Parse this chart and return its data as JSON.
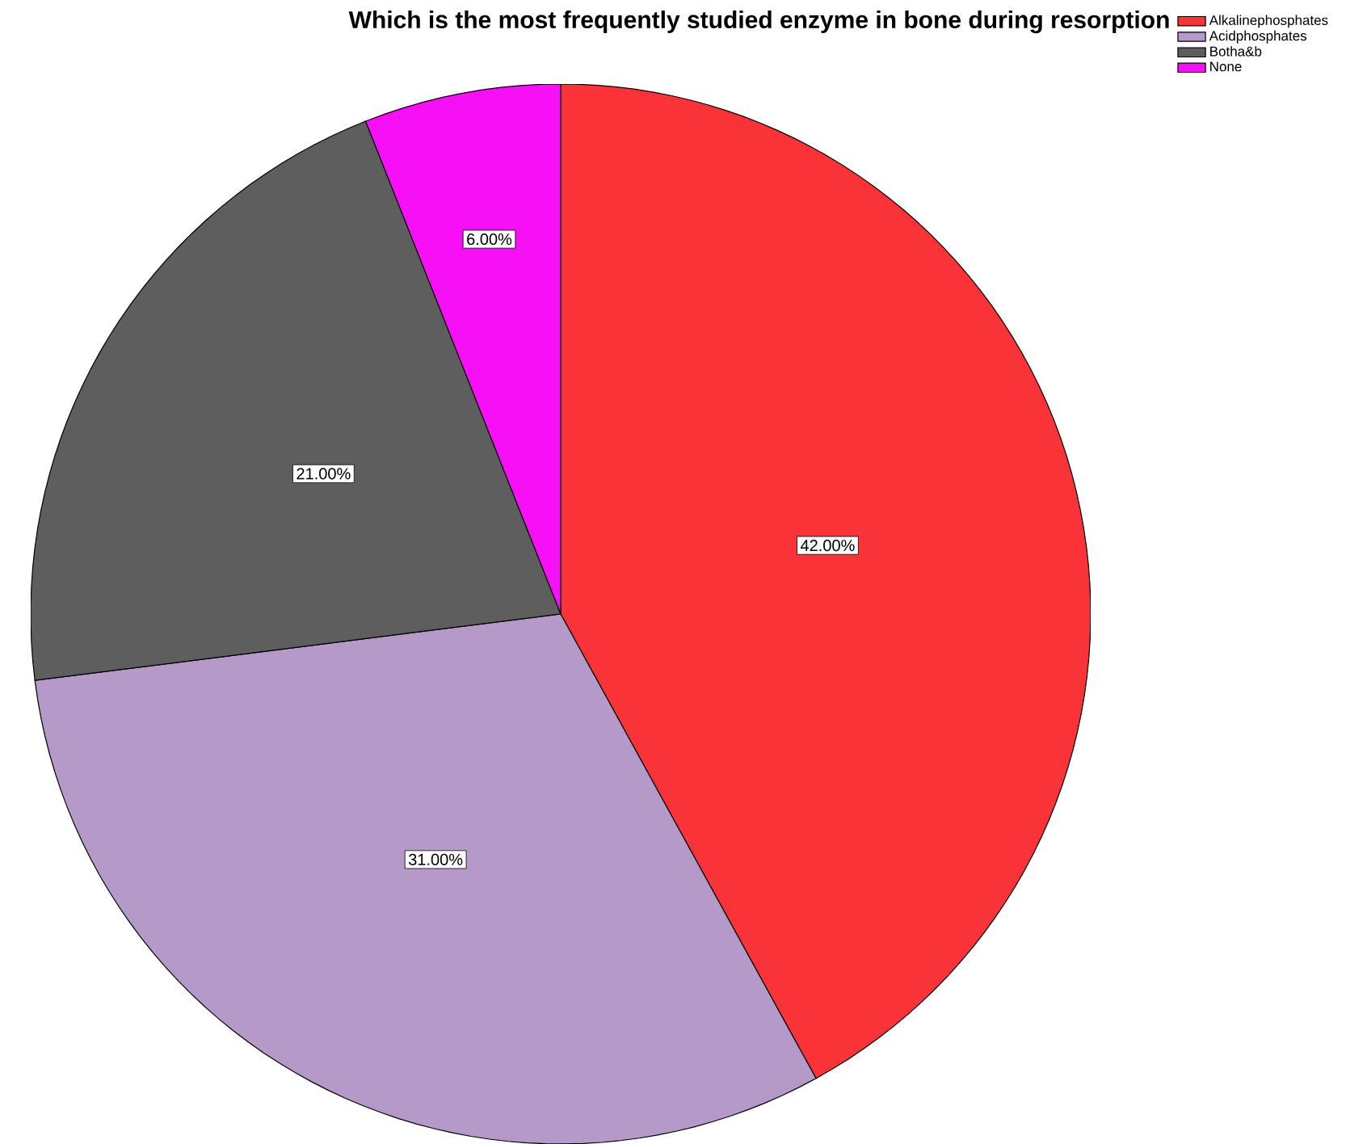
{
  "chart_data": {
    "type": "pie",
    "title": "Which is the most frequently studied enzyme in bone during resorption",
    "categories": [
      "Alkalinephosphates",
      "Acidphosphates",
      "Botha&b",
      "None"
    ],
    "values": [
      42,
      31,
      21,
      6
    ],
    "colors": [
      "#f93338",
      "#b599c8",
      "#5e5e5e",
      "#f70ff5"
    ],
    "value_labels": [
      "42.00%",
      "31.00%",
      "21.00%",
      "6.00%"
    ],
    "legend": "top right"
  }
}
